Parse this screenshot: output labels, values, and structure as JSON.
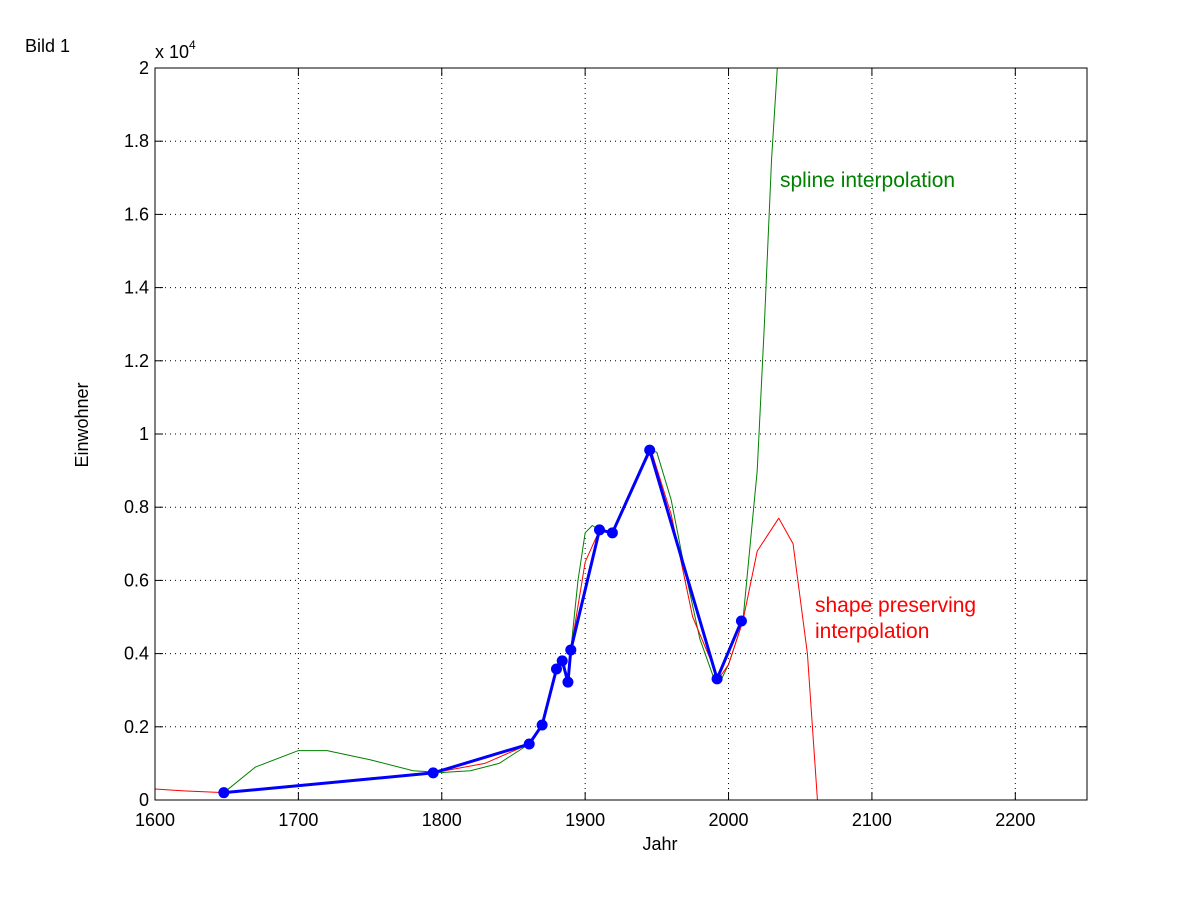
{
  "figure_label": "Bild 1",
  "chart_data": {
    "type": "line",
    "xlabel": "Jahr",
    "ylabel": "Einwohner",
    "y_multiplier": {
      "base": "x 10",
      "exponent": "4"
    },
    "xlim": [
      1600,
      2250
    ],
    "xticks": [
      1600,
      1700,
      1800,
      1900,
      2000,
      2100,
      2200
    ],
    "ylim": [
      0,
      2
    ],
    "yticks": [
      0,
      0.2,
      0.4,
      0.6,
      0.8,
      1,
      1.2,
      1.4,
      1.6,
      1.8,
      2
    ],
    "grid": true,
    "series": [
      {
        "color": "#008000",
        "line_width": 1,
        "markers": false,
        "x": [
          1648,
          1670,
          1700,
          1720,
          1750,
          1780,
          1800,
          1820,
          1840,
          1861,
          1870,
          1880,
          1885,
          1888,
          1890,
          1895,
          1900,
          1905,
          1910,
          1919,
          1930,
          1946,
          1950,
          1960,
          1970,
          1980,
          1990,
          1995,
          2000,
          2010,
          2020,
          2025,
          2030,
          2034
        ],
        "values": [
          0.02,
          0.09,
          0.135,
          0.135,
          0.11,
          0.08,
          0.075,
          0.08,
          0.1,
          0.153,
          0.205,
          0.358,
          0.38,
          0.322,
          0.41,
          0.6,
          0.73,
          0.75,
          0.738,
          0.73,
          0.83,
          0.956,
          0.95,
          0.82,
          0.62,
          0.44,
          0.33,
          0.33,
          0.37,
          0.489,
          0.9,
          1.3,
          1.75,
          2
        ]
      },
      {
        "color": "#ff0000",
        "line_width": 1,
        "markers": false,
        "x": [
          1600,
          1620,
          1648,
          1700,
          1750,
          1794,
          1830,
          1861,
          1870,
          1880,
          1885,
          1888,
          1890,
          1900,
          1910,
          1919,
          1930,
          1946,
          1960,
          1975,
          1993,
          2000,
          2010,
          2020,
          2035,
          2045,
          2055,
          2062
        ],
        "values": [
          0.03,
          0.025,
          0.02,
          0.04,
          0.06,
          0.074,
          0.1,
          0.153,
          0.205,
          0.358,
          0.38,
          0.322,
          0.41,
          0.65,
          0.738,
          0.73,
          0.83,
          0.956,
          0.78,
          0.5,
          0.331,
          0.37,
          0.489,
          0.68,
          0.77,
          0.7,
          0.4,
          0
        ]
      },
      {
        "color": "#0000ff",
        "line_width": 3,
        "markers": true,
        "x": [
          1648,
          1794,
          1861,
          1870,
          1880,
          1884,
          1888,
          1890,
          1910,
          1919,
          1945,
          1992,
          2009
        ],
        "values": [
          0.02,
          0.074,
          0.153,
          0.205,
          0.358,
          0.38,
          0.322,
          0.41,
          0.738,
          0.73,
          0.956,
          0.331,
          0.489
        ]
      }
    ],
    "annotations": [
      {
        "text": [
          "spline interpolation"
        ],
        "color": "#008000"
      },
      {
        "text": [
          "shape preserving",
          "interpolation"
        ],
        "color": "#ff0000"
      }
    ]
  }
}
